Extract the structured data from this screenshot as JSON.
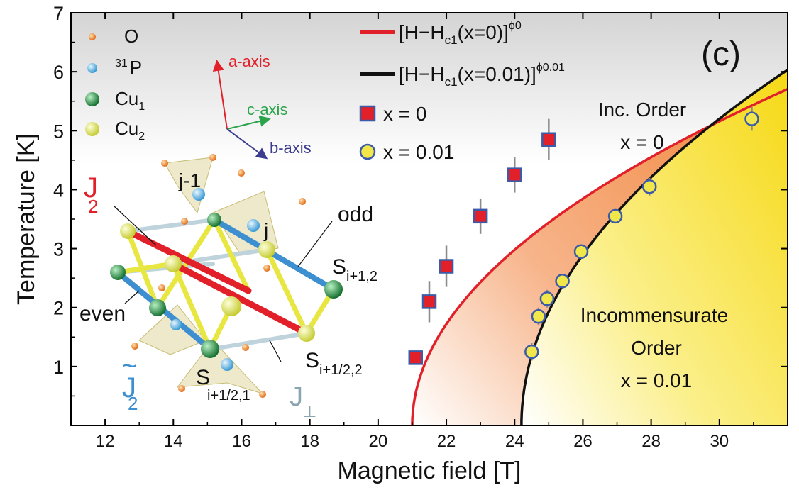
{
  "chart_data": {
    "type": "scatter",
    "panel_label": "(c)",
    "xlabel": "Magnetic field [T]",
    "ylabel": "Temperature [K]",
    "xlim": [
      11,
      32
    ],
    "ylim": [
      0,
      7
    ],
    "xticks": [
      "12",
      "14",
      "16",
      "18",
      "20",
      "22",
      "24",
      "26",
      "28",
      "30"
    ],
    "yticks": [
      "1",
      "2",
      "3",
      "4",
      "5",
      "6",
      "7"
    ],
    "legend_position": "top-center",
    "legend": {
      "fit_x0": {
        "text": "[H−H",
        "sub": "c1",
        "tail": "(x=0)]",
        "sup": "ϕ0"
      },
      "fit_x001": {
        "text": "[H−H",
        "sub": "c1",
        "tail": "(x=0.01)]",
        "sup": "ϕ0.01"
      },
      "marker_x0": "x = 0",
      "marker_x001": "x = 0.01"
    },
    "series": [
      {
        "name": "x = 0",
        "marker": "square",
        "color": "#e2202a",
        "edge_color": "#3b5aa8",
        "x": [
          21.1,
          21.5,
          22.0,
          23.0,
          24.0,
          25.0
        ],
        "y": [
          1.15,
          2.1,
          2.7,
          3.55,
          4.25,
          4.85
        ],
        "yerr": [
          0.0,
          0.35,
          0.35,
          0.3,
          0.3,
          0.35
        ]
      },
      {
        "name": "x = 0.01",
        "marker": "circle",
        "color": "#f1e64a",
        "edge_color": "#3b5aa8",
        "x": [
          24.5,
          24.7,
          24.95,
          25.4,
          25.95,
          26.95,
          27.95,
          30.95
        ],
        "y": [
          1.25,
          1.85,
          2.15,
          2.45,
          2.95,
          3.55,
          4.05,
          5.2
        ],
        "yerr": [
          0.15,
          0.15,
          0.15,
          0.1,
          0.1,
          0.1,
          0.15,
          0.2
        ]
      }
    ],
    "fits": [
      {
        "label": "[H−Hc1(x=0)]^ϕ0",
        "color": "#e2202a",
        "hc1": 21.0,
        "amplitude": 1.72,
        "exponent": 0.5
      },
      {
        "label": "[H−Hc1(x=0.01)]^ϕ0.01",
        "color": "#111111",
        "hc1": 24.2,
        "amplitude": 2.16,
        "exponent": 0.5
      }
    ],
    "region_labels": {
      "inc_order": [
        "Inc. Order",
        "x = 0"
      ],
      "incommensurate": [
        "Incommensurate",
        "Order",
        "x = 0.01"
      ]
    },
    "inset": {
      "atom_legend": [
        {
          "label": "O",
          "sup": "",
          "sub": "",
          "color": "#f08a2a"
        },
        {
          "label": "P",
          "sup": "31",
          "sub": "",
          "color": "#49a9dc"
        },
        {
          "label": "Cu",
          "sup": "",
          "sub": "1",
          "color": "#1f8a3c"
        },
        {
          "label": "Cu",
          "sup": "",
          "sub": "2",
          "color": "#dde34a"
        }
      ],
      "axes": {
        "a": "a-axis",
        "c": "c-axis",
        "b": "b-axis"
      },
      "colors": {
        "a": "#e2202a",
        "c": "#2aa34a",
        "b": "#3b3b8f"
      },
      "labels": {
        "j_minus_1": "j-1",
        "j": "j",
        "odd": "odd",
        "even": "even",
        "J2": {
          "main": "J",
          "sub": "2"
        },
        "J2_tilde": {
          "main": "J",
          "sub": "2",
          "accent": "~"
        },
        "Jperp": {
          "main": "J",
          "sub": "⊥"
        },
        "S_i1_2": {
          "main": "S",
          "sub": "i+1,2"
        },
        "S_ihalf_2": {
          "main": "S",
          "sub": "i+1/2,2"
        },
        "S_ihalf_1": {
          "main": "S",
          "sub": "i+1/2,1"
        }
      }
    }
  }
}
